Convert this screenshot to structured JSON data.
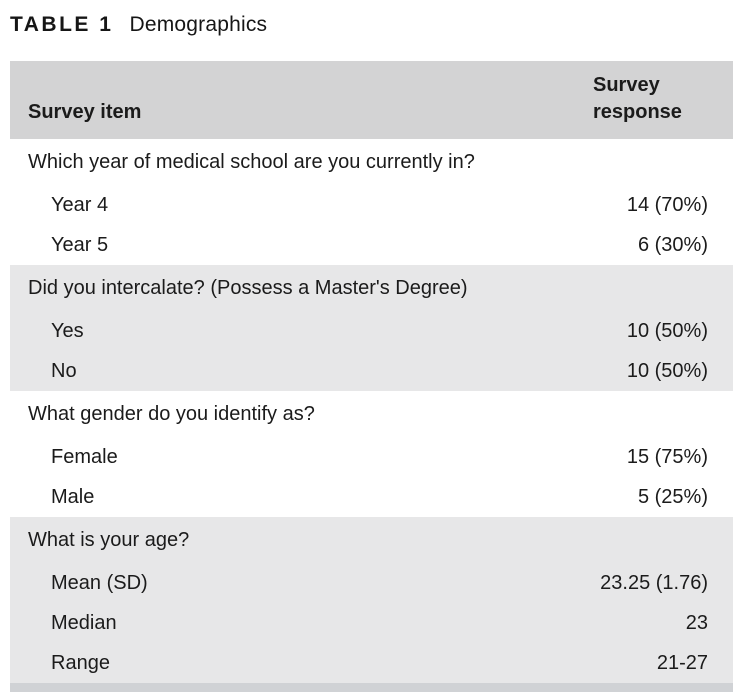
{
  "title": {
    "label": "TABLE 1",
    "subtitle": "Demographics"
  },
  "table": {
    "columns": [
      {
        "label": "Survey item"
      },
      {
        "label": "Survey response"
      }
    ],
    "sections": [
      {
        "question": "Which year of medical school are you currently in?",
        "items": [
          {
            "label": "Year 4",
            "value": "14 (70%)"
          },
          {
            "label": "Year 5",
            "value": "6 (30%)"
          }
        ]
      },
      {
        "question": "Did you intercalate? (Possess a Master's Degree)",
        "items": [
          {
            "label": "Yes",
            "value": "10 (50%)"
          },
          {
            "label": "No",
            "value": "10 (50%)"
          }
        ]
      },
      {
        "question": "What gender do you identify as?",
        "items": [
          {
            "label": "Female",
            "value": "15 (75%)"
          },
          {
            "label": "Male",
            "value": "5 (25%)"
          }
        ]
      },
      {
        "question": "What is your age?",
        "items": [
          {
            "label": "Mean (SD)",
            "value": "23.25 (1.76)"
          },
          {
            "label": "Median",
            "value": "23"
          },
          {
            "label": "Range",
            "value": "21-27"
          }
        ]
      }
    ],
    "colors": {
      "header_bg": "#d3d3d4",
      "shaded_bg": "#e7e7e8",
      "bottom_bar": "#d0d2d5",
      "text": "#1b1b1b"
    }
  }
}
